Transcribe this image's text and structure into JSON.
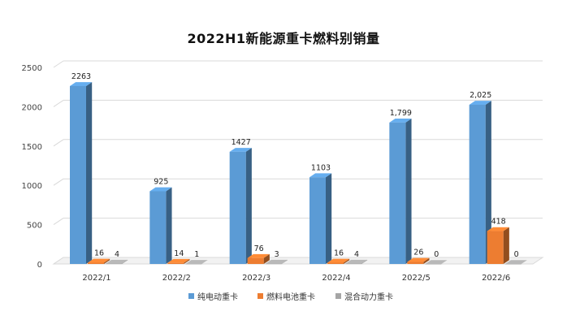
{
  "chart_data": {
    "type": "bar",
    "title": "2022H1新能源重卡燃料别销量",
    "categories": [
      "2022/1",
      "2022/2",
      "2022/3",
      "2022/4",
      "2022/5",
      "2022/6"
    ],
    "series": [
      {
        "name": "纯电动重卡",
        "values": [
          2263,
          925,
          1427,
          1103,
          1799,
          2025
        ],
        "labels": [
          "2263",
          "925",
          "1427",
          "1103",
          "1,799",
          "2,025"
        ],
        "color": "#5b9bd5"
      },
      {
        "name": "燃料电池重卡",
        "values": [
          16,
          14,
          76,
          16,
          26,
          418
        ],
        "labels": [
          "16",
          "14",
          "76",
          "16",
          "26",
          "418"
        ],
        "color": "#ed7d31"
      },
      {
        "name": "混合动力重卡",
        "values": [
          4,
          1,
          3,
          4,
          0,
          0
        ],
        "labels": [
          "4",
          "1",
          "3",
          "4",
          "0",
          "0"
        ],
        "color": "#a5a5a5"
      }
    ],
    "yticks": [
      0,
      500,
      1000,
      1500,
      2000,
      2500
    ],
    "ylim": [
      0,
      2500
    ],
    "grid": true,
    "legend_position": "bottom",
    "style": "3d-column"
  }
}
